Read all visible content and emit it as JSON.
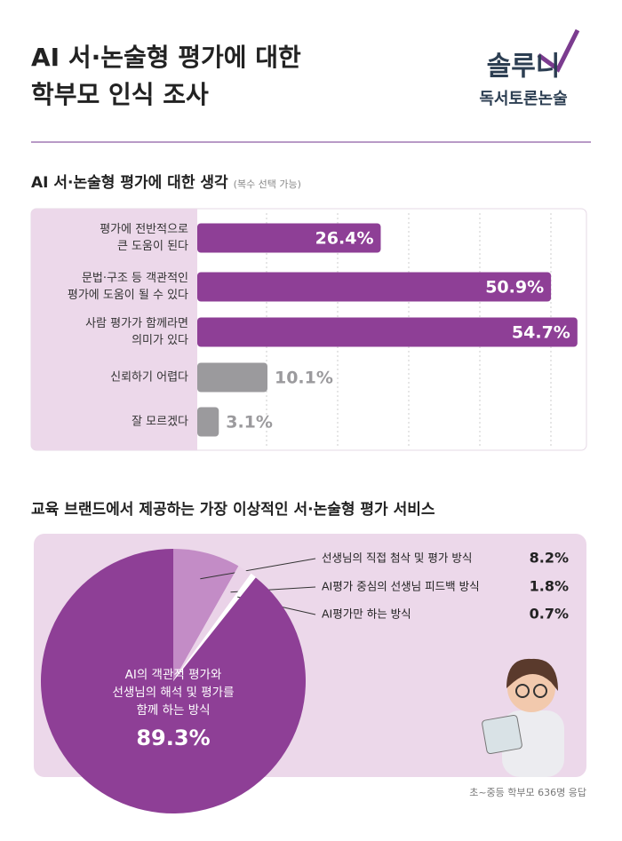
{
  "header": {
    "title": [
      "AI 서·논술형 평가에 대한",
      "학부모 인식 조사"
    ],
    "logo": [
      "솔루니",
      "독서토론논술"
    ]
  },
  "chart_data": [
    {
      "type": "bar",
      "orientation": "horizontal",
      "title": "AI 서·논술형 평가에 대한 생각",
      "subtitle": "(복수 선택 가능)",
      "categories": [
        [
          "평가에 전반적으로",
          "큰 도움이 된다"
        ],
        [
          "문법·구조 등 객관적인",
          "평가에 도움이 될 수 있다"
        ],
        [
          "사람 평가가 함께라면",
          "의미가 있다"
        ],
        [
          "신뢰하기 어렵다"
        ],
        [
          "잘 모르겠다"
        ]
      ],
      "values": [
        26.4,
        50.9,
        54.7,
        10.1,
        3.1
      ],
      "value_labels": [
        "26.4%",
        "50.9%",
        "54.7%",
        "10.1%",
        "3.1%"
      ],
      "colors": [
        "#8e3f96",
        "#8e3f96",
        "#8e3f96",
        "#9b9a9d",
        "#9b9a9d"
      ],
      "xlim": [
        0,
        56
      ],
      "grid": true
    },
    {
      "type": "pie",
      "title": "교육 브랜드에서 제공하는 가장 이상적인 서·논술형 평가 서비스",
      "categories": [
        [
          "선생님의 직접 첨삭 및 평가 방식"
        ],
        [
          "AI평가 중심의 선생님 피드백 방식"
        ],
        [
          "AI평가만 하는 방식"
        ],
        [
          "AI의 객관적 평가와",
          "선생님의 해석 및 평가를",
          "함께 하는 방식"
        ]
      ],
      "values": [
        8.2,
        1.8,
        0.7,
        89.3
      ],
      "value_labels": [
        "8.2%",
        "1.8%",
        "0.7%",
        "89.3%"
      ],
      "colors": [
        "#c38cc6",
        "#ead3e8",
        "#ffffff",
        "#8e3f96"
      ]
    }
  ],
  "footnote": "초~중등 학부모 636명 응답"
}
